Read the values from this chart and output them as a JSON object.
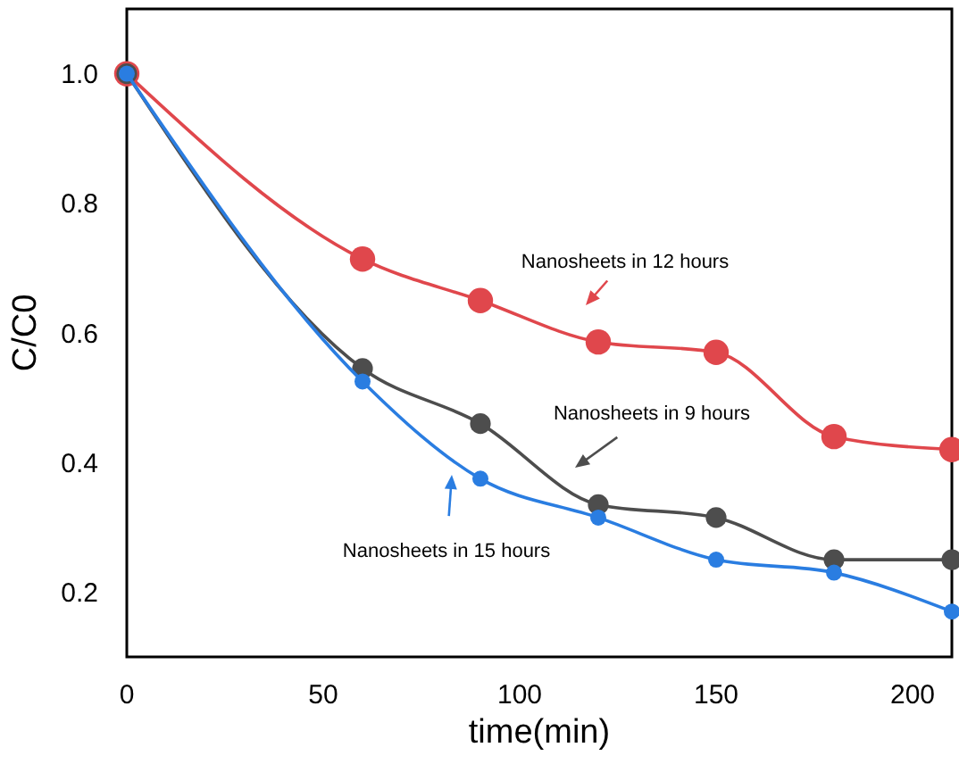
{
  "chart_data": {
    "type": "line",
    "xlabel": "time(min)",
    "ylabel": "C/C0",
    "x": [
      0,
      60,
      90,
      120,
      150,
      180,
      210
    ],
    "series": [
      {
        "color": "#e0474c",
        "values": [
          1.0,
          0.714,
          0.65,
          0.586,
          0.57,
          0.44,
          0.42
        ]
      },
      {
        "color": "#4d4d4d",
        "values": [
          1.0,
          0.545,
          0.46,
          0.335,
          0.315,
          0.25,
          0.25
        ]
      },
      {
        "color": "#2a7de1",
        "values": [
          1.0,
          0.525,
          0.375,
          0.315,
          0.25,
          0.23,
          0.17
        ]
      }
    ],
    "xlim": [
      0,
      210
    ],
    "xticks": [
      0,
      50,
      100,
      150,
      200
    ],
    "ylim": [
      0.1,
      1.1
    ],
    "yticks": [
      0.2,
      0.4,
      0.6,
      0.8,
      {
        "value": 1,
        "label": "1.0"
      }
    ],
    "marker": "circle",
    "line_style": "solid",
    "grid": false,
    "annotations": [
      "Nanosheets in 12 hours",
      "Nanosheets in 9 hours",
      "Nanosheets in 15 hours"
    ]
  }
}
